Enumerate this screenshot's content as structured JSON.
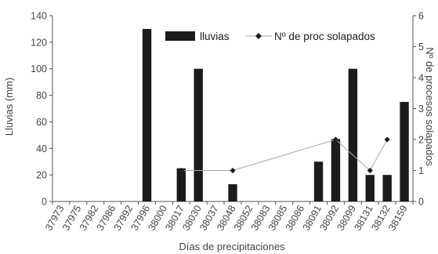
{
  "chart_data": {
    "type": "bar",
    "categories": [
      "37973",
      "37975",
      "37982",
      "37986",
      "37992",
      "37996",
      "38000",
      "38017",
      "38030",
      "38037",
      "38048",
      "38052",
      "38083",
      "38085",
      "38086",
      "38091",
      "38092",
      "38099",
      "38131",
      "38132",
      "38159"
    ],
    "xlabel": "Días de precipitaciones",
    "ylabel": "Lluvias (mm)",
    "y2label": "Nº de procesos solapados",
    "ylim": [
      0,
      140
    ],
    "yticks": [
      0,
      20,
      40,
      60,
      80,
      100,
      120,
      140
    ],
    "y2lim": [
      0,
      6
    ],
    "y2ticks": [
      0,
      1,
      2,
      3,
      4,
      5,
      6
    ],
    "legend_position": "top",
    "grid": false,
    "series": [
      {
        "name": "lluvias",
        "axis": "left",
        "kind": "bar",
        "color": "#1c1c1c",
        "values": [
          0,
          0,
          0,
          0,
          0,
          130,
          0,
          25,
          100,
          0,
          13,
          0,
          0,
          0,
          0,
          30,
          47,
          100,
          20,
          20,
          75
        ]
      },
      {
        "name": "Nº de proc solapados",
        "axis": "right",
        "kind": "line-markers",
        "color": "#1c1c1c",
        "line_color": "#aaaaaa",
        "marker": "diamond",
        "values": [
          null,
          null,
          null,
          null,
          null,
          null,
          null,
          1,
          null,
          null,
          1,
          null,
          null,
          null,
          null,
          null,
          2,
          null,
          1,
          2,
          null
        ]
      }
    ]
  }
}
